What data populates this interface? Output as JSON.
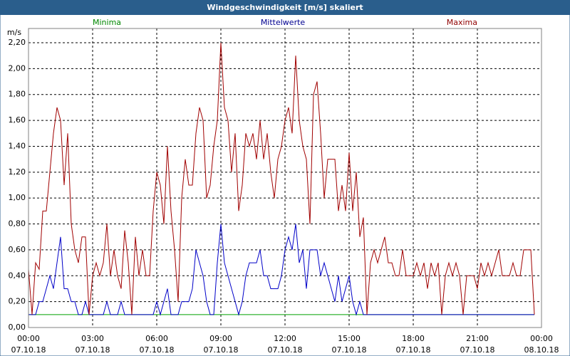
{
  "chart_data": {
    "type": "line",
    "title": "Windgeschwindigkeit [m/s] skaliert",
    "y_unit": "m/s",
    "xlim": [
      0,
      1440
    ],
    "ylim": [
      0,
      2.31
    ],
    "xticks": [
      {
        "value": 0,
        "label": "00:00"
      },
      {
        "value": 180,
        "label": "03:00"
      },
      {
        "value": 360,
        "label": "06:00"
      },
      {
        "value": 540,
        "label": "09:00"
      },
      {
        "value": 720,
        "label": "12:00"
      },
      {
        "value": 900,
        "label": "15:00"
      },
      {
        "value": 1080,
        "label": "18:00"
      },
      {
        "value": 1260,
        "label": "21:00"
      },
      {
        "value": 1440,
        "label": "00:00"
      }
    ],
    "xtick_dates": [
      "07.10.18",
      "07.10.18",
      "07.10.18",
      "07.10.18",
      "07.10.18",
      "07.10.18",
      "07.10.18",
      "07.10.18",
      "08.10.18"
    ],
    "yticks": [
      {
        "value": 0,
        "label": "0,00"
      },
      {
        "value": 0.2,
        "label": "0,20"
      },
      {
        "value": 0.4,
        "label": "0,40"
      },
      {
        "value": 0.6,
        "label": "0,60"
      },
      {
        "value": 0.8,
        "label": "0,80"
      },
      {
        "value": 1.0,
        "label": "1,00"
      },
      {
        "value": 1.2,
        "label": "1,20"
      },
      {
        "value": 1.4,
        "label": "1,40"
      },
      {
        "value": 1.6,
        "label": "1,60"
      },
      {
        "value": 1.8,
        "label": "1,80"
      },
      {
        "value": 2.0,
        "label": "2,00"
      },
      {
        "value": 2.2,
        "label": "2,20"
      }
    ],
    "grid": true,
    "x": [
      0,
      10,
      20,
      30,
      40,
      50,
      60,
      70,
      80,
      90,
      100,
      110,
      120,
      130,
      140,
      150,
      160,
      170,
      180,
      190,
      200,
      210,
      220,
      230,
      240,
      250,
      260,
      270,
      280,
      290,
      300,
      310,
      320,
      330,
      340,
      350,
      360,
      370,
      380,
      390,
      400,
      410,
      420,
      430,
      440,
      450,
      460,
      470,
      480,
      490,
      500,
      510,
      520,
      530,
      540,
      550,
      560,
      570,
      580,
      590,
      600,
      610,
      620,
      630,
      640,
      650,
      660,
      670,
      680,
      690,
      700,
      710,
      720,
      730,
      740,
      750,
      760,
      770,
      780,
      790,
      800,
      810,
      820,
      830,
      840,
      850,
      860,
      870,
      880,
      890,
      900,
      910,
      920,
      930,
      940,
      950,
      960,
      970,
      980,
      990,
      1000,
      1010,
      1020,
      1030,
      1040,
      1050,
      1060,
      1070,
      1080,
      1090,
      1100,
      1110,
      1120,
      1130,
      1140,
      1150,
      1160,
      1170,
      1180,
      1190,
      1200,
      1210,
      1220,
      1230,
      1240,
      1250,
      1260,
      1270,
      1280,
      1290,
      1300,
      1310,
      1320,
      1330,
      1340,
      1350,
      1360,
      1370,
      1380,
      1390,
      1400,
      1410,
      1420
    ],
    "series": [
      {
        "name": "Minima",
        "color": "#00a000",
        "label_color": "#008800",
        "values": [
          0.1,
          0.1,
          0.1,
          0.1,
          0.1,
          0.1,
          0.1,
          0.1,
          0.1,
          0.1,
          0.1,
          0.1,
          0.1,
          0.1,
          0.1,
          0.1,
          0.1,
          0.1,
          0.1,
          0.1,
          0.1,
          0.1,
          0.1,
          0.1,
          0.1,
          0.1,
          0.1,
          0.1,
          0.1,
          0.1,
          0.1,
          0.1,
          0.1,
          0.1,
          0.1,
          0.1,
          0.1,
          0.1,
          0.1,
          0.1,
          0.1,
          0.1,
          0.1,
          0.1,
          0.1,
          0.1,
          0.1,
          0.1,
          0.1,
          0.1,
          0.1,
          0.1,
          0.1,
          0.1,
          0.1,
          0.1,
          0.1,
          0.1,
          0.1,
          0.1,
          0.1,
          0.1,
          0.1,
          0.1,
          0.1,
          0.1,
          0.1,
          0.1,
          0.1,
          0.1,
          0.1,
          0.1,
          0.1,
          0.1,
          0.1,
          0.1,
          0.1,
          0.1,
          0.1,
          0.1,
          0.1,
          0.1,
          0.1,
          0.1,
          0.1,
          0.1,
          0.1,
          0.1,
          0.1,
          0.1,
          0.1,
          0.1,
          0.1,
          0.1,
          0.1,
          0.1,
          0.1,
          0.1,
          0.1,
          0.1,
          0.1,
          0.1,
          0.1,
          0.1,
          0.1,
          0.1,
          0.1,
          0.1,
          0.1,
          0.1,
          0.1,
          0.1,
          0.1,
          0.1,
          0.1,
          0.1,
          0.1,
          0.1,
          0.1,
          0.1,
          0.1,
          0.1,
          0.1,
          0.1,
          0.1,
          0.1,
          0.1,
          0.1,
          0.1,
          0.1,
          0.1,
          0.1,
          0.1,
          0.1,
          0.1,
          0.1,
          0.1,
          0.1,
          0.1,
          0.1,
          0.1,
          0.1,
          0.1
        ]
      },
      {
        "name": "Mittelwerte",
        "color": "#0000c8",
        "label_color": "#000090",
        "values": [
          0.1,
          0.1,
          0.1,
          0.2,
          0.2,
          0.3,
          0.4,
          0.3,
          0.5,
          0.7,
          0.3,
          0.3,
          0.2,
          0.2,
          0.1,
          0.1,
          0.2,
          0.1,
          0.1,
          0.1,
          0.1,
          0.1,
          0.2,
          0.1,
          0.1,
          0.1,
          0.2,
          0.1,
          0.1,
          0.1,
          0.1,
          0.1,
          0.1,
          0.1,
          0.1,
          0.1,
          0.2,
          0.1,
          0.2,
          0.3,
          0.1,
          0.1,
          0.1,
          0.2,
          0.2,
          0.2,
          0.3,
          0.6,
          0.5,
          0.4,
          0.2,
          0.1,
          0.1,
          0.5,
          0.8,
          0.5,
          0.4,
          0.3,
          0.2,
          0.1,
          0.2,
          0.4,
          0.5,
          0.5,
          0.5,
          0.6,
          0.4,
          0.4,
          0.3,
          0.3,
          0.3,
          0.4,
          0.6,
          0.7,
          0.6,
          0.8,
          0.5,
          0.6,
          0.3,
          0.6,
          0.6,
          0.6,
          0.4,
          0.5,
          0.4,
          0.3,
          0.2,
          0.4,
          0.2,
          0.3,
          0.4,
          0.2,
          0.1,
          0.2,
          0.1,
          0.1,
          0.1,
          0.1,
          0.1,
          0.1,
          0.1,
          0.1,
          0.1,
          0.1,
          0.1,
          0.1,
          0.1,
          0.1,
          0.1,
          0.1,
          0.1,
          0.1,
          0.1,
          0.1,
          0.1,
          0.1,
          0.1,
          0.1,
          0.1,
          0.1,
          0.1,
          0.1,
          0.1,
          0.1,
          0.1,
          0.1,
          0.1,
          0.1,
          0.1,
          0.1,
          0.1,
          0.1,
          0.1,
          0.1,
          0.1,
          0.1,
          0.1,
          0.1,
          0.1,
          0.1,
          0.1,
          0.1,
          0.1
        ]
      },
      {
        "name": "Maxima",
        "color": "#a00000",
        "label_color": "#900000",
        "values": [
          0.45,
          0.1,
          0.5,
          0.45,
          0.9,
          0.9,
          1.2,
          1.5,
          1.7,
          1.6,
          1.1,
          1.5,
          0.8,
          0.6,
          0.5,
          0.7,
          0.7,
          0.1,
          0.4,
          0.5,
          0.4,
          0.5,
          0.8,
          0.4,
          0.6,
          0.4,
          0.3,
          0.75,
          0.5,
          0.1,
          0.7,
          0.4,
          0.6,
          0.4,
          0.4,
          0.9,
          1.2,
          1.1,
          0.8,
          1.4,
          0.9,
          0.6,
          0.2,
          1.0,
          1.3,
          1.1,
          1.1,
          1.5,
          1.7,
          1.6,
          1.0,
          1.1,
          1.4,
          1.6,
          2.2,
          1.7,
          1.6,
          1.2,
          1.5,
          0.9,
          1.1,
          1.5,
          1.4,
          1.5,
          1.3,
          1.6,
          1.3,
          1.5,
          1.2,
          1.0,
          1.3,
          1.4,
          1.6,
          1.7,
          1.5,
          2.1,
          1.6,
          1.4,
          1.3,
          0.8,
          1.8,
          1.9,
          1.5,
          1.0,
          1.3,
          1.3,
          1.3,
          0.9,
          1.1,
          0.9,
          1.35,
          0.9,
          1.2,
          0.7,
          0.85,
          0.1,
          0.5,
          0.6,
          0.5,
          0.6,
          0.7,
          0.5,
          0.5,
          0.4,
          0.4,
          0.6,
          0.4,
          0.4,
          0.4,
          0.5,
          0.4,
          0.5,
          0.3,
          0.5,
          0.4,
          0.5,
          0.1,
          0.4,
          0.5,
          0.4,
          0.5,
          0.4,
          0.1,
          0.4,
          0.4,
          0.4,
          0.3,
          0.5,
          0.4,
          0.5,
          0.4,
          0.5,
          0.6,
          0.4,
          0.4,
          0.4,
          0.5,
          0.4,
          0.4,
          0.6,
          0.6,
          0.6,
          0.1
        ]
      }
    ]
  }
}
